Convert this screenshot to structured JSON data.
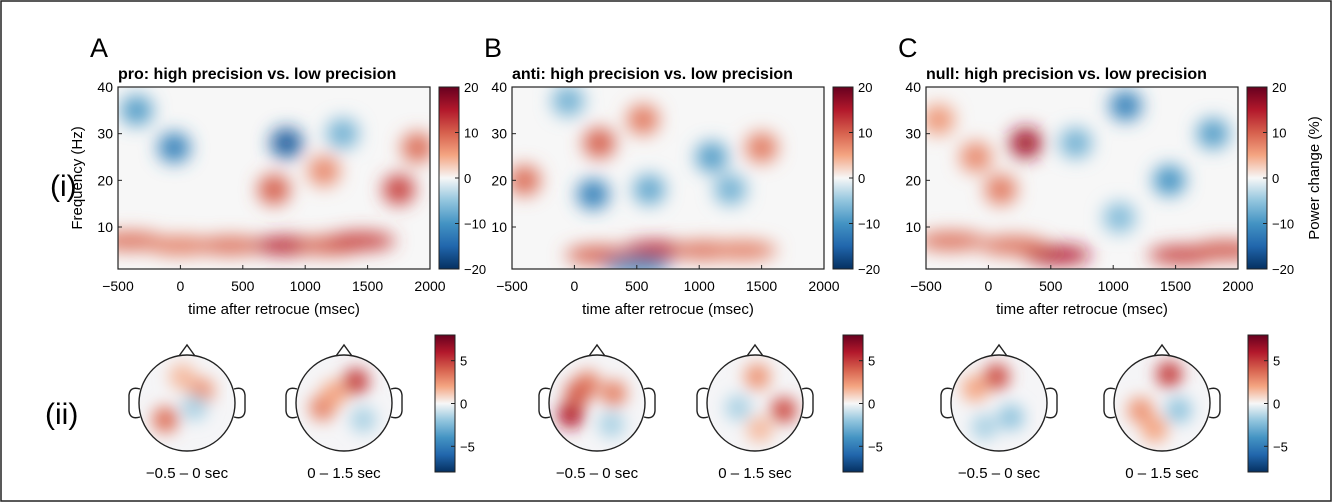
{
  "row_labels": [
    "(i)",
    "(ii)"
  ],
  "colormap": {
    "negative_color": "#053061",
    "mid_color": "#f7f7f7",
    "positive_color": "#67001f"
  },
  "chart_data": [
    {
      "type": "heatmap",
      "panel": "A",
      "title": "pro: high precision vs. low precision",
      "xlabel": "time after retrocue (msec)",
      "ylabel": "Frequency (Hz)",
      "xlim": [
        -500,
        2000
      ],
      "ylim": [
        1,
        40
      ],
      "xticks": [
        "-500",
        "0",
        "500",
        "1000",
        "1500",
        "2000"
      ],
      "yticks": [
        "10",
        "20",
        "30",
        "40"
      ],
      "colorbar": {
        "range": [
          -20,
          20
        ],
        "ticks": [
          "20",
          "10",
          "0",
          "-10",
          "-20"
        ],
        "label": ""
      },
      "features": [
        {
          "time": -400,
          "freq": 7,
          "value": 9
        },
        {
          "time": 0,
          "freq": 6,
          "value": 8
        },
        {
          "time": 400,
          "freq": 6,
          "value": 9
        },
        {
          "time": 850,
          "freq": 6,
          "value": 14
        },
        {
          "time": 1200,
          "freq": 6,
          "value": 10
        },
        {
          "time": 1450,
          "freq": 7,
          "value": 12
        },
        {
          "time": 1750,
          "freq": 18,
          "value": 12
        },
        {
          "time": 750,
          "freq": 18,
          "value": 10
        },
        {
          "time": 850,
          "freq": 28,
          "value": -16
        },
        {
          "time": -50,
          "freq": 27,
          "value": -12
        },
        {
          "time": -350,
          "freq": 35,
          "value": -9
        },
        {
          "time": 1300,
          "freq": 30,
          "value": -7
        },
        {
          "time": 1900,
          "freq": 27,
          "value": 9
        },
        {
          "time": 1150,
          "freq": 22,
          "value": 7
        }
      ]
    },
    {
      "type": "heatmap",
      "panel": "B",
      "title": "anti: high precision vs. low precision",
      "xlabel": "time after retrocue (msec)",
      "ylabel": "",
      "xlim": [
        -500,
        2000
      ],
      "ylim": [
        1,
        40
      ],
      "xticks": [
        "-500",
        "0",
        "500",
        "1000",
        "1500",
        "2000"
      ],
      "yticks": [
        "10",
        "20",
        "30",
        "40"
      ],
      "colorbar": {
        "range": [
          -20,
          20
        ],
        "ticks": [
          "20",
          "10",
          "0",
          "-10",
          "-20"
        ],
        "label": ""
      },
      "features": [
        {
          "time": 650,
          "freq": 5,
          "value": 14
        },
        {
          "time": 200,
          "freq": 4,
          "value": 10
        },
        {
          "time": 1050,
          "freq": 5,
          "value": 9
        },
        {
          "time": 1350,
          "freq": 5,
          "value": 8
        },
        {
          "time": -400,
          "freq": 20,
          "value": 9
        },
        {
          "time": 200,
          "freq": 28,
          "value": 10
        },
        {
          "time": 550,
          "freq": 33,
          "value": 8
        },
        {
          "time": 1100,
          "freq": 25,
          "value": -9
        },
        {
          "time": 1500,
          "freq": 27,
          "value": 8
        },
        {
          "time": 150,
          "freq": 17,
          "value": -12
        },
        {
          "time": 600,
          "freq": 18,
          "value": -8
        },
        {
          "time": 1250,
          "freq": 18,
          "value": -7
        },
        {
          "time": 500,
          "freq": 1.5,
          "value": -10
        },
        {
          "time": -50,
          "freq": 37,
          "value": -7
        }
      ]
    },
    {
      "type": "heatmap",
      "panel": "C",
      "title": "null: high precision vs. low precision",
      "xlabel": "time after retrocue (msec)",
      "ylabel": "",
      "xlim": [
        -500,
        2000
      ],
      "ylim": [
        1,
        40
      ],
      "xticks": [
        "-500",
        "0",
        "500",
        "1000",
        "1500",
        "2000"
      ],
      "yticks": [
        "10",
        "20",
        "30",
        "40"
      ],
      "colorbar": {
        "range": [
          -20,
          20
        ],
        "ticks": [
          "20",
          "10",
          "0",
          "-10",
          "-20"
        ],
        "label": "Power change (%)"
      },
      "features": [
        {
          "time": 300,
          "freq": 28,
          "value": 16
        },
        {
          "time": 550,
          "freq": 4,
          "value": 15
        },
        {
          "time": 1550,
          "freq": 4,
          "value": 12
        },
        {
          "time": 1900,
          "freq": 5,
          "value": 11
        },
        {
          "time": -300,
          "freq": 7,
          "value": 9
        },
        {
          "time": 200,
          "freq": 6,
          "value": 9
        },
        {
          "time": 100,
          "freq": 18,
          "value": 8
        },
        {
          "time": -100,
          "freq": 25,
          "value": 7
        },
        {
          "time": 1100,
          "freq": 36,
          "value": -12
        },
        {
          "time": 1450,
          "freq": 20,
          "value": -10
        },
        {
          "time": 1800,
          "freq": 30,
          "value": -9
        },
        {
          "time": 700,
          "freq": 28,
          "value": -7
        },
        {
          "time": 1050,
          "freq": 12,
          "value": -6
        },
        {
          "time": -400,
          "freq": 33,
          "value": 6
        }
      ]
    }
  ],
  "topomaps": [
    {
      "panel": "A",
      "colorbar": {
        "range": [
          -8,
          8
        ],
        "ticks": [
          "5",
          "0",
          "-5"
        ]
      },
      "maps": [
        {
          "label": "−0.5 – 0 sec",
          "features": [
            {
              "nx": -0.45,
              "ny": 0.35,
              "value": 3.5
            },
            {
              "nx": 0.3,
              "ny": -0.25,
              "value": 2.5
            },
            {
              "nx": 0.15,
              "ny": 0.1,
              "value": -1.5
            },
            {
              "nx": -0.1,
              "ny": -0.55,
              "value": 1.5
            }
          ]
        },
        {
          "label": "0 – 1.5 sec",
          "features": [
            {
              "nx": 0.25,
              "ny": -0.45,
              "value": 5
            },
            {
              "nx": -0.45,
              "ny": 0.1,
              "value": 3
            },
            {
              "nx": 0.4,
              "ny": 0.35,
              "value": -1.5
            },
            {
              "nx": -0.2,
              "ny": -0.2,
              "value": 2
            }
          ]
        }
      ]
    },
    {
      "panel": "B",
      "colorbar": {
        "range": [
          -8,
          8
        ],
        "ticks": [
          "5",
          "0",
          "-5"
        ]
      },
      "maps": [
        {
          "label": "−0.5 – 0 sec",
          "features": [
            {
              "nx": -0.55,
              "ny": 0.25,
              "value": 6
            },
            {
              "nx": -0.2,
              "ny": -0.4,
              "value": 3
            },
            {
              "nx": 0.35,
              "ny": -0.2,
              "value": 3
            },
            {
              "nx": 0.3,
              "ny": 0.45,
              "value": -1.5
            },
            {
              "nx": -0.4,
              "ny": -0.2,
              "value": 4
            }
          ]
        },
        {
          "label": "0 – 1.5 sec",
          "features": [
            {
              "nx": 0.6,
              "ny": 0.15,
              "value": 4.5
            },
            {
              "nx": 0.05,
              "ny": -0.55,
              "value": 2.5
            },
            {
              "nx": -0.35,
              "ny": 0.1,
              "value": -1.5
            },
            {
              "nx": 0.1,
              "ny": 0.55,
              "value": 1.5
            }
          ]
        }
      ]
    },
    {
      "panel": "C",
      "colorbar": {
        "range": [
          -8,
          8
        ],
        "ticks": [
          "5",
          "0",
          "-5"
        ]
      },
      "maps": [
        {
          "label": "−0.5 – 0 sec",
          "features": [
            {
              "nx": -0.05,
              "ny": -0.55,
              "value": 4.5
            },
            {
              "nx": -0.5,
              "ny": -0.3,
              "value": 2
            },
            {
              "nx": 0.25,
              "ny": 0.3,
              "value": -2
            },
            {
              "nx": -0.3,
              "ny": 0.5,
              "value": -1.5
            }
          ]
        },
        {
          "label": "0 – 1.5 sec",
          "features": [
            {
              "nx": 0.15,
              "ny": -0.6,
              "value": 5
            },
            {
              "nx": -0.45,
              "ny": 0.15,
              "value": 2.5
            },
            {
              "nx": 0.35,
              "ny": 0.15,
              "value": -2
            },
            {
              "nx": -0.15,
              "ny": 0.55,
              "value": 2
            }
          ]
        }
      ]
    }
  ]
}
